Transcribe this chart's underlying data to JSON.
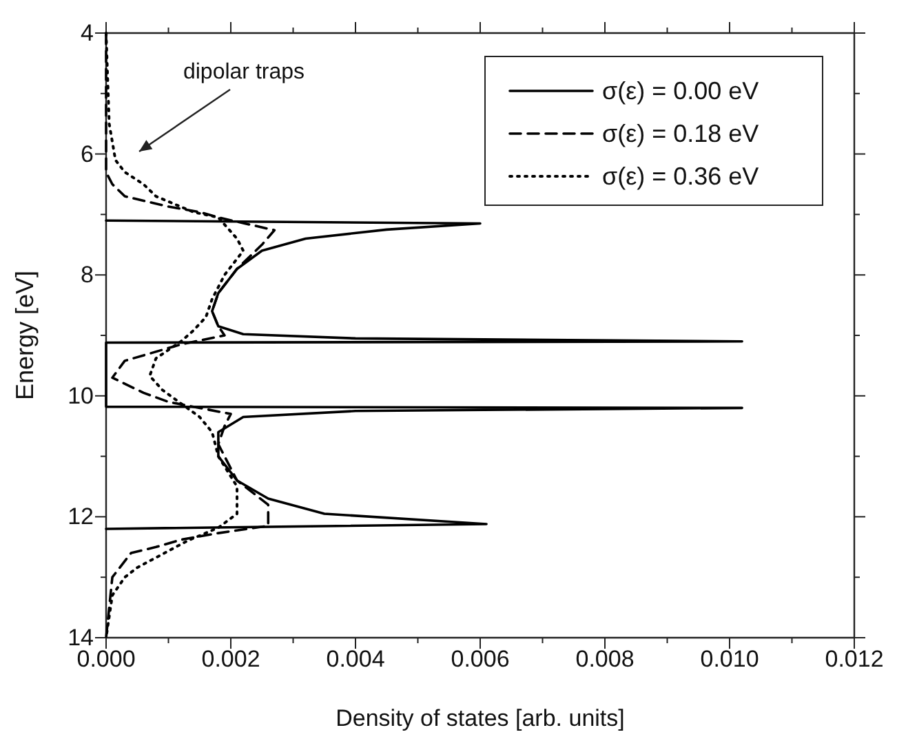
{
  "chart_data": {
    "type": "line",
    "xlabel": "Density of states [arb. units]",
    "ylabel": "Energy [eV]",
    "xlim": [
      0,
      0.012
    ],
    "ylim": [
      14,
      4
    ],
    "xticks": [
      {
        "value": 0,
        "label": "0.000"
      },
      {
        "value": 0.001,
        "label": null
      },
      {
        "value": 0.002,
        "label": "0.002"
      },
      {
        "value": 0.003,
        "label": null
      },
      {
        "value": 0.004,
        "label": "0.004"
      },
      {
        "value": 0.005,
        "label": null
      },
      {
        "value": 0.006,
        "label": "0.006"
      },
      {
        "value": 0.007,
        "label": null
      },
      {
        "value": 0.008,
        "label": "0.008"
      },
      {
        "value": 0.009,
        "label": null
      },
      {
        "value": 0.01,
        "label": "0.010"
      },
      {
        "value": 0.011,
        "label": null
      },
      {
        "value": 0.012,
        "label": "0.012"
      }
    ],
    "yticks": [
      4,
      {
        "value": 5,
        "label": null
      },
      6,
      {
        "value": 7,
        "label": null
      },
      8,
      {
        "value": 9,
        "label": null
      },
      10,
      {
        "value": 11,
        "label": null
      },
      12,
      {
        "value": 13,
        "label": null
      },
      14
    ],
    "grid": false,
    "legend": "top right",
    "marker": "none",
    "annotations": [
      "dipolar traps"
    ],
    "series": [
      {
        "name": "σ(ε) = 0.00 eV",
        "color": "#000000",
        "line_style": "solid",
        "x": [
          0,
          0.006,
          0.0045,
          0.0032,
          0.0025,
          0.0021,
          0.0018,
          0.0017,
          0.0018,
          0.0022,
          0.004,
          0.0102,
          0,
          0,
          0.0102,
          0.004,
          0.0022,
          0.0018,
          0.0018,
          0.0021,
          0.0026,
          0.0035,
          0.0061,
          0
        ],
        "values": [
          7.1,
          7.15,
          7.25,
          7.4,
          7.6,
          7.9,
          8.3,
          8.6,
          8.85,
          8.98,
          9.05,
          9.1,
          9.12,
          10.18,
          10.2,
          10.25,
          10.35,
          10.6,
          11.0,
          11.4,
          11.7,
          11.95,
          12.12,
          12.2
        ]
      },
      {
        "name": "σ(ε) = 0.18 eV",
        "color": "#000000",
        "line_style": "dashed",
        "x": [
          0,
          0,
          0.0001,
          0.0003,
          0.001,
          0.0015,
          0.0018,
          0.0027,
          0.0025,
          0.0021,
          0.0018,
          0.0017,
          0.0018,
          0.0019,
          0.0012,
          0.0007,
          0.0003,
          0.0001,
          0.0006,
          0.001,
          0.002,
          0.0019,
          0.0018,
          0.0021,
          0.0026,
          0.0026,
          0.0018,
          0.0012,
          0.0008,
          0.0004,
          0.0001,
          0
        ],
        "values": [
          4,
          6.3,
          6.5,
          6.7,
          6.87,
          6.96,
          7.05,
          7.26,
          7.5,
          7.9,
          8.3,
          8.6,
          8.85,
          9.0,
          9.15,
          9.3,
          9.42,
          9.7,
          9.95,
          10.1,
          10.3,
          10.5,
          10.8,
          11.4,
          11.8,
          12.15,
          12.27,
          12.38,
          12.5,
          12.6,
          13.0,
          14
        ]
      },
      {
        "name": "σ(ε) = 0.36 eV",
        "color": "#000000",
        "line_style": "dotted",
        "x": [
          0,
          5e-05,
          0.00015,
          0.0003,
          0.0006,
          0.0008,
          0.0011,
          0.0014,
          0.0018,
          0.0021,
          0.0022,
          0.0019,
          0.0017,
          0.0016,
          0.0014,
          0.0012,
          0.0008,
          0.0007,
          0.0009,
          0.0015,
          0.0017,
          0.0018,
          0.0021,
          0.0021,
          0.0018,
          0.0013,
          0.0005,
          0.0003,
          0.0001,
          0
        ],
        "values": [
          4,
          5.5,
          6.1,
          6.3,
          6.5,
          6.7,
          6.83,
          6.96,
          7.05,
          7.4,
          7.6,
          8.0,
          8.4,
          8.7,
          8.92,
          9.1,
          9.38,
          9.67,
          9.9,
          10.35,
          10.6,
          11.0,
          11.5,
          11.95,
          12.18,
          12.4,
          12.84,
          13.0,
          13.3,
          14
        ]
      }
    ]
  }
}
